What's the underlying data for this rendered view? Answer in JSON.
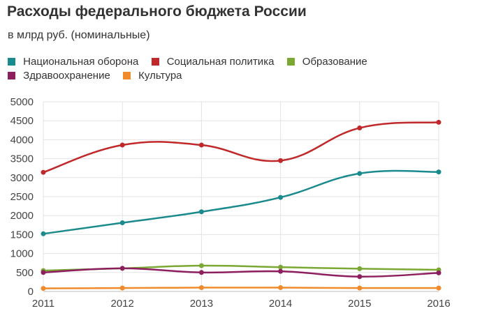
{
  "header": {
    "title": "Расходы федерального бюджета России",
    "subtitle": "в млрд руб. (номинальные)"
  },
  "chart_data": {
    "type": "line",
    "title": "Расходы федерального бюджета России",
    "subtitle": "в млрд руб. (номинальные)",
    "xlabel": "",
    "ylabel": "",
    "x": [
      2011,
      2012,
      2013,
      2014,
      2015,
      2016
    ],
    "x_tick_labels": [
      "2011",
      "2012",
      "2013",
      "2014",
      "2015",
      "2016"
    ],
    "y_ticks": [
      0,
      500,
      1000,
      1500,
      2000,
      2500,
      3000,
      3500,
      4000,
      4500,
      5000
    ],
    "y_tick_labels": [
      "0",
      "500",
      "1000",
      "1500",
      "2000",
      "2500",
      "3000",
      "3500",
      "4000",
      "4500",
      "5000"
    ],
    "ylim": [
      0,
      5000
    ],
    "grid": true,
    "legend_position": "top",
    "series": [
      {
        "name": "Национальная оборона",
        "color": "#1a8a8c",
        "values": [
          1520,
          1810,
          2100,
          2480,
          3110,
          3150
        ]
      },
      {
        "name": "Социальная политика",
        "color": "#c0282a",
        "values": [
          3140,
          3860,
          3860,
          3450,
          4310,
          4460
        ]
      },
      {
        "name": "Образование",
        "color": "#7aa832",
        "values": [
          550,
          610,
          680,
          640,
          600,
          570
        ]
      },
      {
        "name": "Здравоохранение",
        "color": "#8e1f5e",
        "values": [
          500,
          610,
          500,
          530,
          390,
          490
        ]
      },
      {
        "name": "Культура",
        "color": "#f08a2a",
        "values": [
          80,
          90,
          100,
          100,
          90,
          90
        ]
      }
    ]
  }
}
